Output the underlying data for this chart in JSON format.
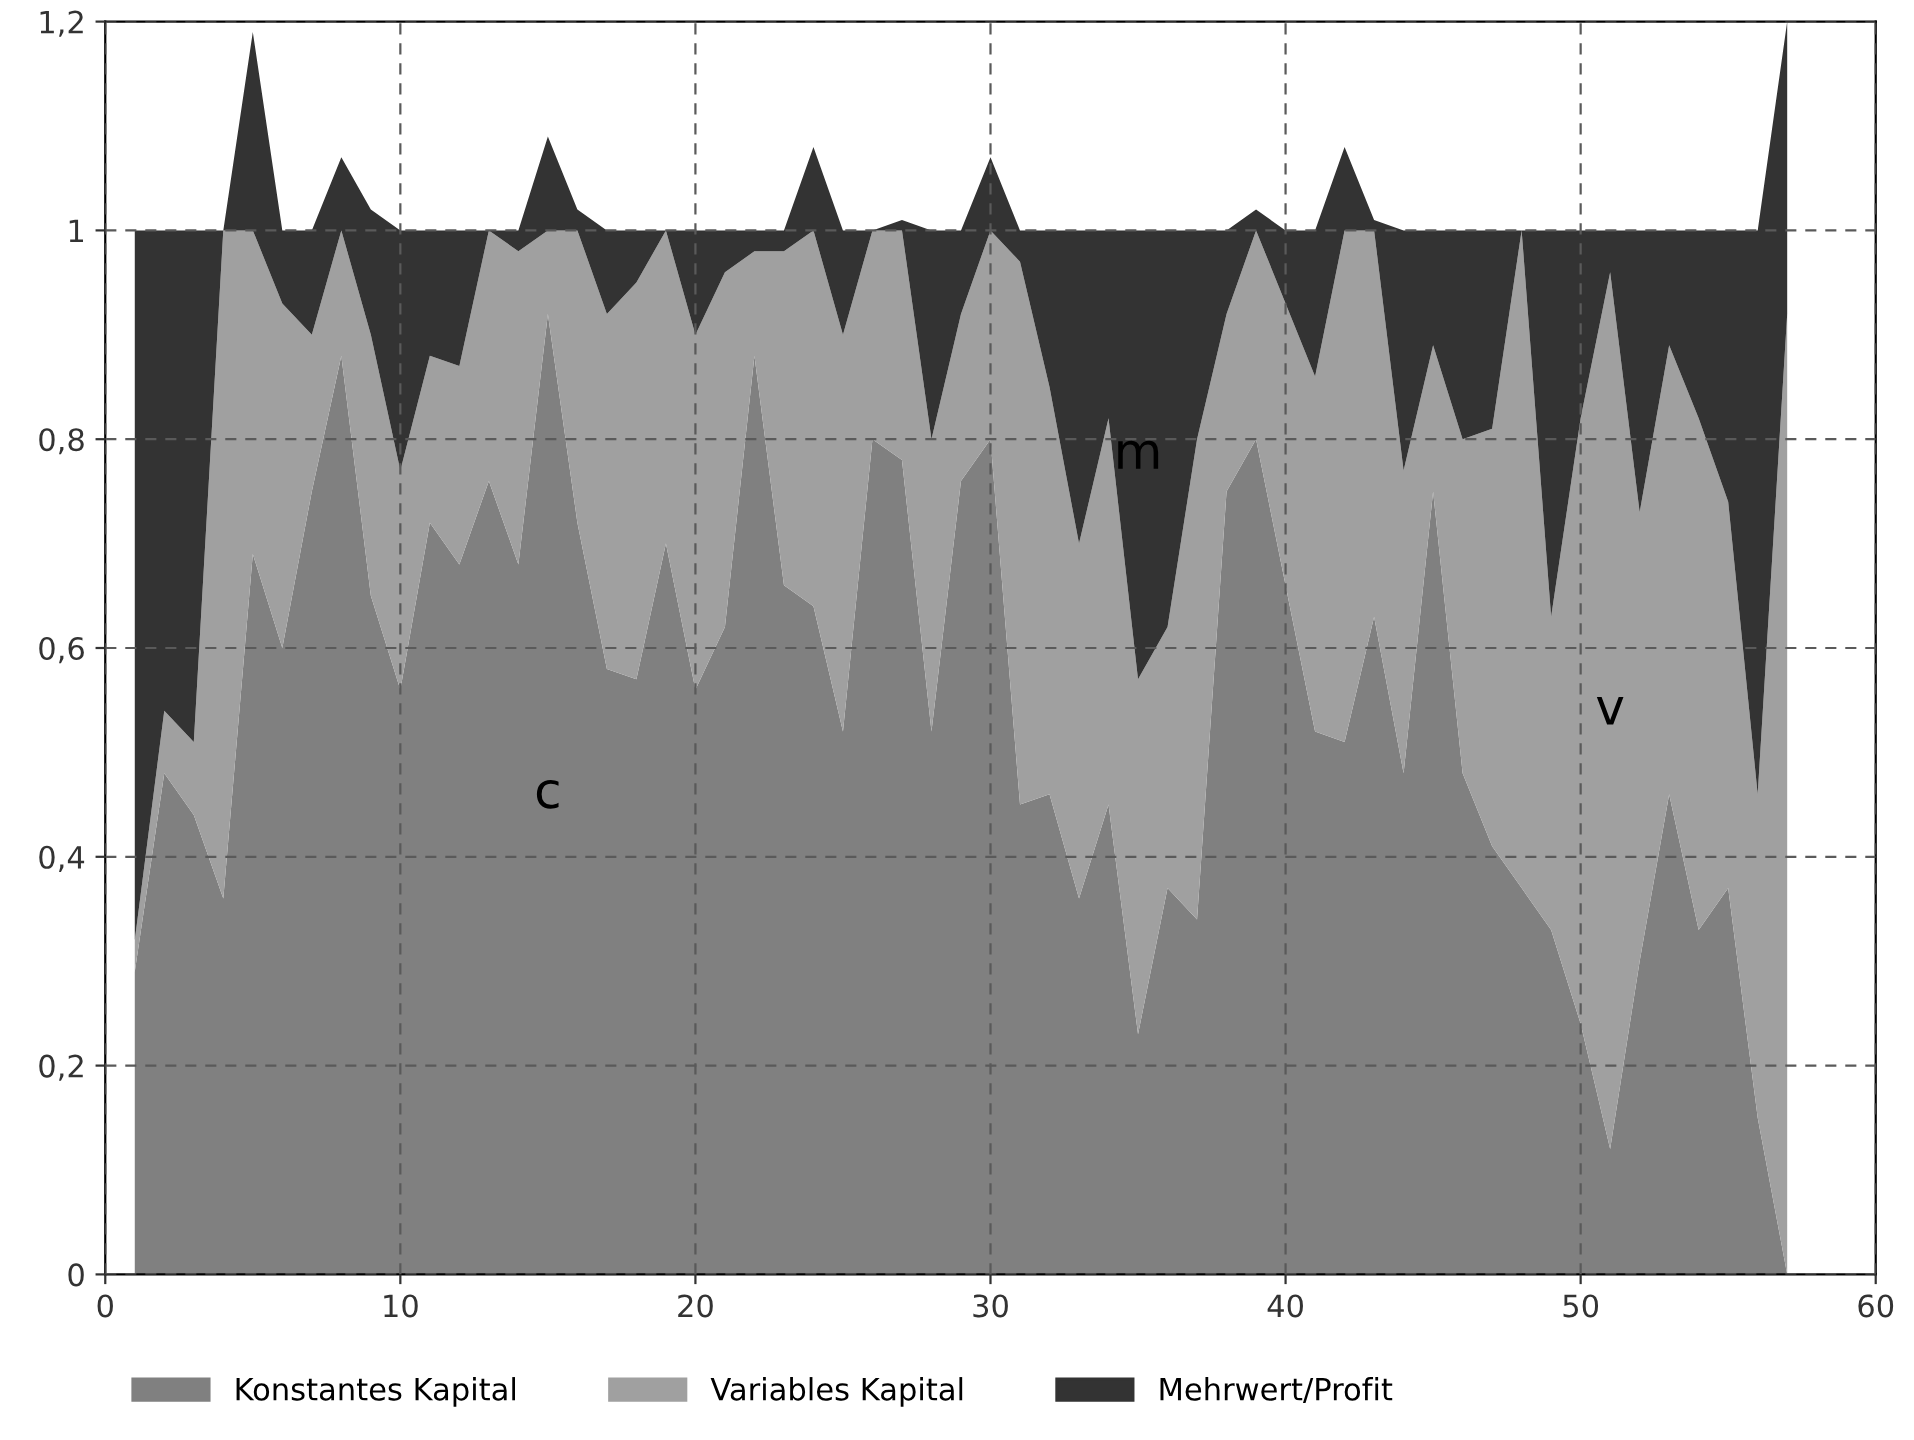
{
  "chart_data": {
    "type": "area",
    "stacked": true,
    "x": [
      1,
      2,
      3,
      4,
      5,
      6,
      7,
      8,
      9,
      10,
      11,
      12,
      13,
      14,
      15,
      16,
      17,
      18,
      19,
      20,
      21,
      22,
      23,
      24,
      25,
      26,
      27,
      28,
      29,
      30,
      31,
      32,
      33,
      34,
      35,
      36,
      37,
      38,
      39,
      40,
      41,
      42,
      43,
      44,
      45,
      46,
      47,
      48,
      49,
      50,
      51,
      52,
      53,
      54,
      55,
      56,
      57
    ],
    "series": [
      {
        "name": "Konstantes Kapital",
        "color": "#808080",
        "values": [
          0.29,
          0.48,
          0.44,
          0.36,
          0.69,
          0.6,
          0.75,
          0.88,
          0.65,
          0.56,
          0.72,
          0.68,
          0.76,
          0.68,
          0.92,
          0.72,
          0.58,
          0.57,
          0.7,
          0.56,
          0.62,
          0.88,
          0.66,
          0.64,
          0.52,
          0.8,
          0.78,
          0.52,
          0.76,
          0.8,
          0.45,
          0.46,
          0.36,
          0.45,
          0.23,
          0.37,
          0.34,
          0.75,
          0.8,
          0.66,
          0.52,
          0.51,
          0.63,
          0.48,
          0.75,
          0.48,
          0.41,
          0.37,
          0.33,
          0.24,
          0.12,
          0.3,
          0.46,
          0.33,
          0.37,
          0.15,
          0
        ]
      },
      {
        "name": "Variables Kapital",
        "color": "#a0a0a0",
        "values": [
          0.03,
          0.06,
          0.07,
          0.64,
          0.31,
          0.33,
          0.15,
          0.12,
          0.25,
          0.21,
          0.16,
          0.19,
          0.24,
          0.3,
          0.08,
          0.28,
          0.34,
          0.38,
          0.3,
          0.34,
          0.34,
          0.1,
          0.32,
          0.36,
          0.38,
          0.2,
          0.22,
          0.28,
          0.16,
          0.2,
          0.52,
          0.39,
          0.34,
          0.37,
          0.34,
          0.25,
          0.46,
          0.17,
          0.2,
          0.27,
          0.34,
          0.49,
          0.37,
          0.29,
          0.14,
          0.32,
          0.4,
          0.63,
          0.3,
          0.58,
          0.84,
          0.43,
          0.43,
          0.49,
          0.37,
          0.31,
          0.92
        ]
      },
      {
        "name": "Mehrwert/Profit",
        "color": "#333333",
        "values": [
          0.68,
          0.46,
          0.49,
          0,
          0.19,
          0.07,
          0.1,
          0.07,
          0.12,
          0.23,
          0.12,
          0.13,
          0,
          0.02,
          0.09,
          0.02,
          0.08,
          0.05,
          0,
          0.1,
          0.04,
          0.02,
          0.02,
          0.08,
          0.1,
          0,
          0.01,
          0.2,
          0.08,
          0.07,
          0.03,
          0.15,
          0.3,
          0.18,
          0.43,
          0.38,
          0.2,
          0.08,
          0.02,
          0.07,
          0.14,
          0.08,
          0.01,
          0.23,
          0.11,
          0.2,
          0.19,
          0,
          0.37,
          0.18,
          0.04,
          0.27,
          0.11,
          0.18,
          0.26,
          0.54,
          0.28
        ]
      }
    ],
    "xlim": [
      0,
      60
    ],
    "xticks": [
      0,
      10,
      20,
      30,
      40,
      50,
      60
    ],
    "ylim": [
      0,
      1.2
    ],
    "yticks": [
      0,
      {
        "value": 0.2,
        "label": "0,2"
      },
      {
        "value": 0.4,
        "label": "0,4"
      },
      {
        "value": 0.6,
        "label": "0,6"
      },
      {
        "value": 0.8,
        "label": "0,8"
      },
      1,
      {
        "value": 1.2,
        "label": "1,2"
      }
    ],
    "annotations": [
      "c",
      "v",
      "m"
    ],
    "grid": true,
    "legend": "bottom"
  }
}
